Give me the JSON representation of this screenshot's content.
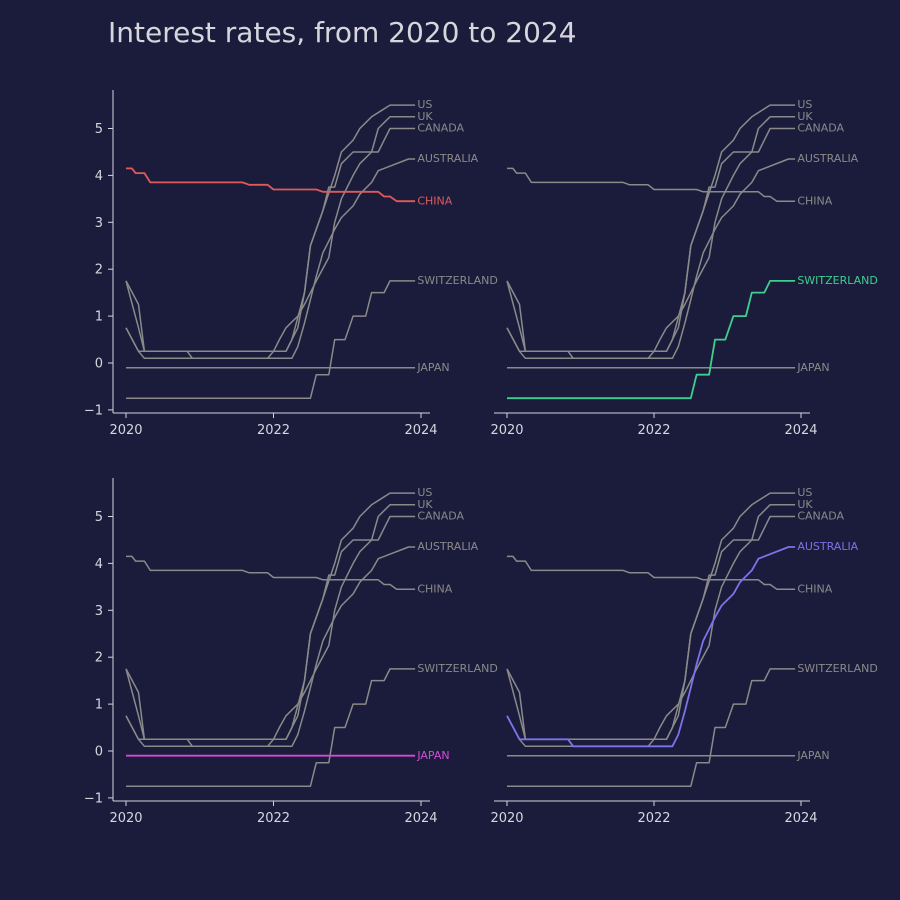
{
  "title": "Interest rates, from 2020 to 2024",
  "colors": {
    "background": "#1b1c3b",
    "text": "#d6d6dc",
    "axis": "#d6d6dc",
    "context_line": "#8a8a8a"
  },
  "chart_data": {
    "type": "line",
    "layout": "2x2 small multiples, one highlighted series per panel",
    "title": "Interest rates, from 2020 to 2024",
    "xlabel": "",
    "ylabel": "",
    "xlim": [
      2019.9,
      2024.1
    ],
    "ylim": [
      -1.05,
      5.8
    ],
    "x_ticks": [
      "2020",
      "2022",
      "2024"
    ],
    "y_ticks": [
      "−1",
      "0",
      "1",
      "2",
      "3",
      "4",
      "5"
    ],
    "grid": false,
    "series": [
      {
        "name": "US",
        "points": [
          [
            2020.0,
            1.75
          ],
          [
            2020.17,
            1.25
          ],
          [
            2020.25,
            0.25
          ],
          [
            2022.17,
            0.25
          ],
          [
            2022.33,
            0.75
          ],
          [
            2022.42,
            1.5
          ],
          [
            2022.5,
            2.5
          ],
          [
            2022.67,
            3.25
          ],
          [
            2022.83,
            4.0
          ],
          [
            2022.92,
            4.5
          ],
          [
            2023.08,
            4.75
          ],
          [
            2023.17,
            5.0
          ],
          [
            2023.33,
            5.25
          ],
          [
            2023.58,
            5.5
          ],
          [
            2023.92,
            5.5
          ]
        ]
      },
      {
        "name": "UK",
        "points": [
          [
            2020.0,
            0.75
          ],
          [
            2020.17,
            0.25
          ],
          [
            2020.25,
            0.1
          ],
          [
            2021.92,
            0.1
          ],
          [
            2022.0,
            0.25
          ],
          [
            2022.08,
            0.5
          ],
          [
            2022.17,
            0.75
          ],
          [
            2022.33,
            1.0
          ],
          [
            2022.42,
            1.25
          ],
          [
            2022.58,
            1.75
          ],
          [
            2022.75,
            2.25
          ],
          [
            2022.83,
            3.0
          ],
          [
            2022.92,
            3.5
          ],
          [
            2023.08,
            4.0
          ],
          [
            2023.17,
            4.25
          ],
          [
            2023.33,
            4.5
          ],
          [
            2023.42,
            5.0
          ],
          [
            2023.58,
            5.25
          ],
          [
            2023.92,
            5.25
          ]
        ]
      },
      {
        "name": "CANADA",
        "points": [
          [
            2020.0,
            1.75
          ],
          [
            2020.17,
            0.75
          ],
          [
            2020.25,
            0.25
          ],
          [
            2022.17,
            0.25
          ],
          [
            2022.25,
            0.5
          ],
          [
            2022.42,
            1.5
          ],
          [
            2022.5,
            2.5
          ],
          [
            2022.67,
            3.25
          ],
          [
            2022.75,
            3.75
          ],
          [
            2022.83,
            3.75
          ],
          [
            2022.92,
            4.25
          ],
          [
            2023.08,
            4.5
          ],
          [
            2023.42,
            4.5
          ],
          [
            2023.5,
            4.75
          ],
          [
            2023.58,
            5.0
          ],
          [
            2023.92,
            5.0
          ]
        ]
      },
      {
        "name": "AUSTRALIA",
        "points": [
          [
            2020.0,
            0.75
          ],
          [
            2020.17,
            0.25
          ],
          [
            2020.83,
            0.25
          ],
          [
            2020.9,
            0.1
          ],
          [
            2022.25,
            0.1
          ],
          [
            2022.33,
            0.35
          ],
          [
            2022.42,
            0.85
          ],
          [
            2022.5,
            1.35
          ],
          [
            2022.58,
            1.85
          ],
          [
            2022.67,
            2.35
          ],
          [
            2022.75,
            2.6
          ],
          [
            2022.83,
            2.85
          ],
          [
            2022.92,
            3.1
          ],
          [
            2023.08,
            3.35
          ],
          [
            2023.17,
            3.6
          ],
          [
            2023.33,
            3.85
          ],
          [
            2023.42,
            4.1
          ],
          [
            2023.83,
            4.35
          ],
          [
            2023.92,
            4.35
          ]
        ]
      },
      {
        "name": "CHINA",
        "points": [
          [
            2020.0,
            4.15
          ],
          [
            2020.08,
            4.15
          ],
          [
            2020.13,
            4.05
          ],
          [
            2020.25,
            4.05
          ],
          [
            2020.33,
            3.85
          ],
          [
            2021.58,
            3.85
          ],
          [
            2021.67,
            3.8
          ],
          [
            2021.92,
            3.8
          ],
          [
            2022.0,
            3.7
          ],
          [
            2022.58,
            3.7
          ],
          [
            2022.67,
            3.65
          ],
          [
            2023.42,
            3.65
          ],
          [
            2023.5,
            3.55
          ],
          [
            2023.58,
            3.55
          ],
          [
            2023.67,
            3.45
          ],
          [
            2023.92,
            3.45
          ]
        ]
      },
      {
        "name": "SWITZERLAND",
        "points": [
          [
            2020.0,
            -0.75
          ],
          [
            2022.5,
            -0.75
          ],
          [
            2022.58,
            -0.25
          ],
          [
            2022.75,
            -0.25
          ],
          [
            2022.83,
            0.5
          ],
          [
            2022.97,
            0.5
          ],
          [
            2023.08,
            1.0
          ],
          [
            2023.25,
            1.0
          ],
          [
            2023.33,
            1.5
          ],
          [
            2023.5,
            1.5
          ],
          [
            2023.58,
            1.75
          ],
          [
            2023.92,
            1.75
          ]
        ]
      },
      {
        "name": "JAPAN",
        "points": [
          [
            2020.0,
            -0.1
          ],
          [
            2023.92,
            -0.1
          ]
        ]
      }
    ],
    "panels": [
      {
        "highlight": "CHINA",
        "color": "#e05a5a"
      },
      {
        "highlight": "SWITZERLAND",
        "color": "#3ecf8e"
      },
      {
        "highlight": "JAPAN",
        "color": "#d24bd8"
      },
      {
        "highlight": "AUSTRALIA",
        "color": "#7b73ea"
      }
    ],
    "label_y": {
      "US": 5.52,
      "UK": 5.27,
      "CANADA": 5.02,
      "AUSTRALIA": 4.37,
      "CHINA": 3.47,
      "SWITZERLAND": 1.77,
      "JAPAN": -0.08
    }
  }
}
